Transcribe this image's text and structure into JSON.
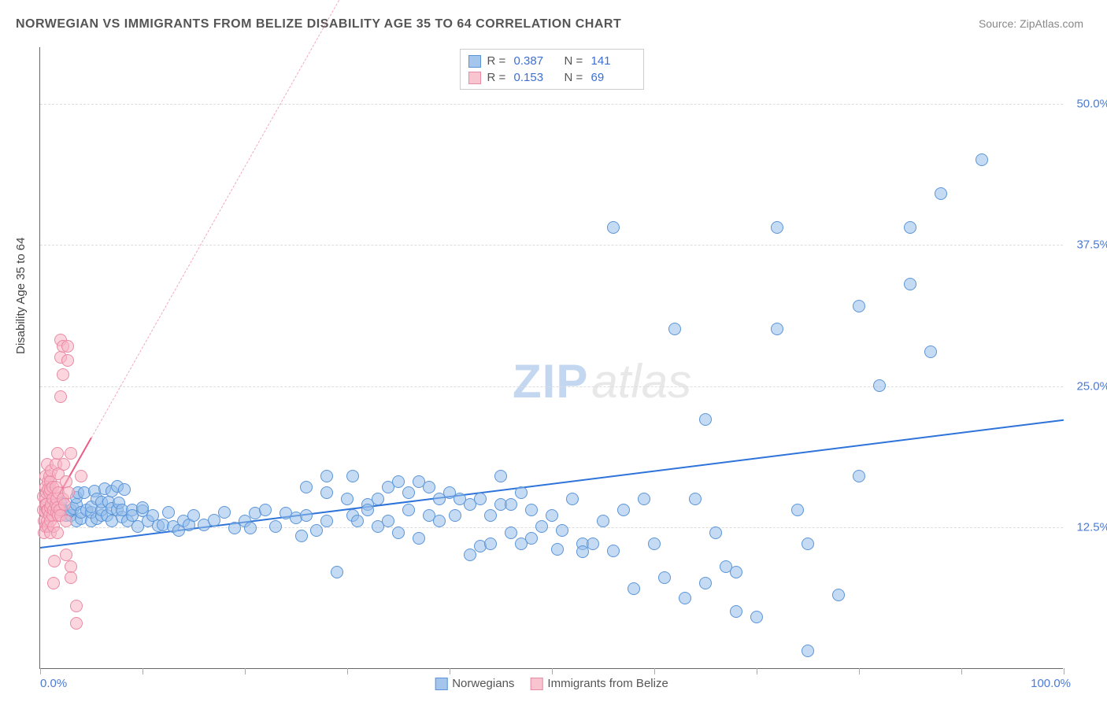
{
  "title": "NORWEGIAN VS IMMIGRANTS FROM BELIZE DISABILITY AGE 35 TO 64 CORRELATION CHART",
  "source": "Source: ZipAtlas.com",
  "y_axis_label": "Disability Age 35 to 64",
  "watermark": {
    "zip": "ZIP",
    "atlas": "atlas"
  },
  "chart": {
    "type": "scatter",
    "background_color": "#ffffff",
    "grid_color": "#dddddd",
    "xlim": [
      0,
      100
    ],
    "ylim": [
      0,
      55
    ],
    "x_axis": {
      "tick_positions": [
        0,
        10,
        20,
        30,
        40,
        50,
        60,
        70,
        80,
        90,
        100
      ],
      "label_left": "0.0%",
      "label_right": "100.0%",
      "label_color": "#4a7bd6"
    },
    "y_axis": {
      "gridlines": [
        12.5,
        25.0,
        37.5,
        50.0
      ],
      "labels": [
        "12.5%",
        "25.0%",
        "37.5%",
        "50.0%"
      ],
      "label_color": "#4a7bd6"
    },
    "series": [
      {
        "name": "Norwegians",
        "marker_color": "#a4c6ed",
        "marker_border": "#5b95d8",
        "marker_size": 16,
        "regression": {
          "slope": 0.113,
          "intercept": 10.8,
          "color": "#2d73d9",
          "width": 2
        },
        "R": "0.387",
        "N": "141",
        "points": [
          [
            2,
            14.2
          ],
          [
            2,
            14.6
          ],
          [
            2.5,
            13.5
          ],
          [
            3,
            13.5
          ],
          [
            3,
            14
          ],
          [
            3.2,
            14.1
          ],
          [
            3.5,
            13
          ],
          [
            3.5,
            14.5
          ],
          [
            3.5,
            15.1
          ],
          [
            3.7,
            15.5
          ],
          [
            4,
            13.2
          ],
          [
            4,
            13.8
          ],
          [
            4.3,
            15.5
          ],
          [
            4.5,
            14
          ],
          [
            5,
            13
          ],
          [
            5,
            13.8
          ],
          [
            5,
            14.3
          ],
          [
            5.3,
            15.7
          ],
          [
            5.5,
            13.2
          ],
          [
            5.5,
            15
          ],
          [
            6,
            13.5
          ],
          [
            6,
            14
          ],
          [
            6,
            14.7
          ],
          [
            6.3,
            15.9
          ],
          [
            6.5,
            13.5
          ],
          [
            6.7,
            14.7
          ],
          [
            7,
            13
          ],
          [
            7,
            14.1
          ],
          [
            7,
            15.7
          ],
          [
            7.5,
            14
          ],
          [
            7.5,
            16.1
          ],
          [
            7.7,
            14.6
          ],
          [
            8,
            13.4
          ],
          [
            8,
            14
          ],
          [
            8.2,
            15.8
          ],
          [
            8.5,
            13
          ],
          [
            9,
            14
          ],
          [
            9,
            13.5
          ],
          [
            9.5,
            12.5
          ],
          [
            10,
            13.9
          ],
          [
            10,
            14.2
          ],
          [
            10.5,
            13
          ],
          [
            11,
            13.5
          ],
          [
            11.5,
            12.6
          ],
          [
            12,
            12.7
          ],
          [
            12.5,
            13.8
          ],
          [
            13,
            12.5
          ],
          [
            13.5,
            12.2
          ],
          [
            14,
            13
          ],
          [
            14.5,
            12.7
          ],
          [
            15,
            13.5
          ],
          [
            16,
            12.7
          ],
          [
            17,
            13.1
          ],
          [
            18,
            13.8
          ],
          [
            19,
            12.4
          ],
          [
            20,
            13
          ],
          [
            20.5,
            12.4
          ],
          [
            21,
            13.7
          ],
          [
            22,
            14
          ],
          [
            23,
            12.5
          ],
          [
            24,
            13.7
          ],
          [
            25,
            13.3
          ],
          [
            25.5,
            11.7
          ],
          [
            26,
            16
          ],
          [
            26,
            13.5
          ],
          [
            27,
            12.2
          ],
          [
            28,
            17
          ],
          [
            28,
            15.5
          ],
          [
            28,
            13
          ],
          [
            29,
            8.5
          ],
          [
            30,
            15
          ],
          [
            30.5,
            17
          ],
          [
            30.5,
            13.5
          ],
          [
            31,
            13
          ],
          [
            32,
            14.5
          ],
          [
            32,
            14
          ],
          [
            33,
            15
          ],
          [
            33,
            12.5
          ],
          [
            34,
            16
          ],
          [
            34,
            13
          ],
          [
            35,
            16.5
          ],
          [
            35,
            12
          ],
          [
            36,
            15.5
          ],
          [
            36,
            14
          ],
          [
            37,
            16.5
          ],
          [
            37,
            11.5
          ],
          [
            38,
            13.5
          ],
          [
            38,
            16
          ],
          [
            39,
            15
          ],
          [
            39,
            13
          ],
          [
            40,
            15.5
          ],
          [
            40.5,
            13.5
          ],
          [
            41,
            15
          ],
          [
            42,
            10
          ],
          [
            42,
            14.5
          ],
          [
            43,
            10.8
          ],
          [
            43,
            15
          ],
          [
            44,
            13.5
          ],
          [
            44,
            11
          ],
          [
            45,
            14.5
          ],
          [
            45,
            17
          ],
          [
            46,
            12
          ],
          [
            46,
            14.5
          ],
          [
            47,
            15.5
          ],
          [
            47,
            11
          ],
          [
            48,
            11.5
          ],
          [
            48,
            14
          ],
          [
            49,
            12.5
          ],
          [
            50,
            13.5
          ],
          [
            50.5,
            10.5
          ],
          [
            51,
            12.2
          ],
          [
            52,
            15
          ],
          [
            53,
            11
          ],
          [
            53,
            10.3
          ],
          [
            54,
            11
          ],
          [
            55,
            13
          ],
          [
            56,
            39
          ],
          [
            56,
            10.4
          ],
          [
            57,
            14
          ],
          [
            58,
            7
          ],
          [
            59,
            15
          ],
          [
            60,
            11
          ],
          [
            61,
            8
          ],
          [
            62,
            30
          ],
          [
            63,
            6.2
          ],
          [
            64,
            15
          ],
          [
            65,
            22
          ],
          [
            65,
            7.5
          ],
          [
            66,
            12
          ],
          [
            67,
            9
          ],
          [
            68,
            8.5
          ],
          [
            68,
            5
          ],
          [
            70,
            4.5
          ],
          [
            72,
            30
          ],
          [
            72,
            39
          ],
          [
            74,
            14
          ],
          [
            75,
            11
          ],
          [
            75,
            1.5
          ],
          [
            78,
            6.5
          ],
          [
            80,
            17
          ],
          [
            80,
            32
          ],
          [
            82,
            25
          ],
          [
            85,
            34
          ],
          [
            85,
            39
          ],
          [
            87,
            28
          ],
          [
            88,
            42
          ],
          [
            92,
            45
          ]
        ]
      },
      {
        "name": "Immigrants from Belize",
        "marker_color": "#f7c4d0",
        "marker_border": "#e98ba4",
        "marker_size": 16,
        "regression": {
          "slope": 1.6,
          "intercept": 12.5,
          "color": "#ea5d85",
          "width": 2,
          "x_end_solid": 5,
          "dashed_extend_to_x": 55
        },
        "R": "0.153",
        "N": "69",
        "points": [
          [
            0.3,
            14
          ],
          [
            0.3,
            15.2
          ],
          [
            0.4,
            13
          ],
          [
            0.4,
            12
          ],
          [
            0.5,
            15
          ],
          [
            0.5,
            14.5
          ],
          [
            0.5,
            13.8
          ],
          [
            0.5,
            16
          ],
          [
            0.5,
            12.5
          ],
          [
            0.5,
            17
          ],
          [
            0.6,
            14.5
          ],
          [
            0.6,
            15.5
          ],
          [
            0.7,
            13
          ],
          [
            0.7,
            14
          ],
          [
            0.7,
            18
          ],
          [
            0.8,
            12.5
          ],
          [
            0.8,
            16.5
          ],
          [
            0.8,
            14
          ],
          [
            0.8,
            15.8
          ],
          [
            0.9,
            13.5
          ],
          [
            0.9,
            15.5
          ],
          [
            0.9,
            17
          ],
          [
            1,
            14.2
          ],
          [
            1,
            16.5
          ],
          [
            1,
            13
          ],
          [
            1,
            15.8
          ],
          [
            1,
            12
          ],
          [
            1.1,
            14.5
          ],
          [
            1.1,
            17.5
          ],
          [
            1.2,
            13.5
          ],
          [
            1.2,
            15
          ],
          [
            1.2,
            16
          ],
          [
            1.3,
            14
          ],
          [
            1.3,
            12.5
          ],
          [
            1.3,
            7.5
          ],
          [
            1.4,
            9.5
          ],
          [
            1.5,
            14.5
          ],
          [
            1.5,
            16
          ],
          [
            1.5,
            18
          ],
          [
            1.6,
            13.8
          ],
          [
            1.6,
            15
          ],
          [
            1.7,
            14.2
          ],
          [
            1.7,
            12
          ],
          [
            1.7,
            19
          ],
          [
            1.8,
            13.5
          ],
          [
            1.8,
            15.5
          ],
          [
            1.8,
            17.2
          ],
          [
            1.9,
            14
          ],
          [
            2,
            29
          ],
          [
            2,
            27.5
          ],
          [
            2,
            24
          ],
          [
            2,
            13.5
          ],
          [
            2.2,
            15
          ],
          [
            2.2,
            26
          ],
          [
            2.2,
            28.5
          ],
          [
            2.3,
            18
          ],
          [
            2.4,
            14.5
          ],
          [
            2.5,
            16.5
          ],
          [
            2.5,
            13
          ],
          [
            2.7,
            28.5
          ],
          [
            2.7,
            27.2
          ],
          [
            2.8,
            15.5
          ],
          [
            3,
            19
          ],
          [
            2.5,
            10
          ],
          [
            3,
            9
          ],
          [
            3,
            8
          ],
          [
            3.5,
            5.5
          ],
          [
            3.5,
            4
          ],
          [
            4,
            17
          ]
        ]
      }
    ],
    "legend_top": [
      {
        "swatch": "blue",
        "R": "0.387",
        "N": "141"
      },
      {
        "swatch": "pink",
        "R": "0.153",
        "N": "69"
      }
    ],
    "legend_bottom": [
      {
        "swatch": "blue",
        "label": "Norwegians"
      },
      {
        "swatch": "pink",
        "label": "Immigrants from Belize"
      }
    ]
  }
}
